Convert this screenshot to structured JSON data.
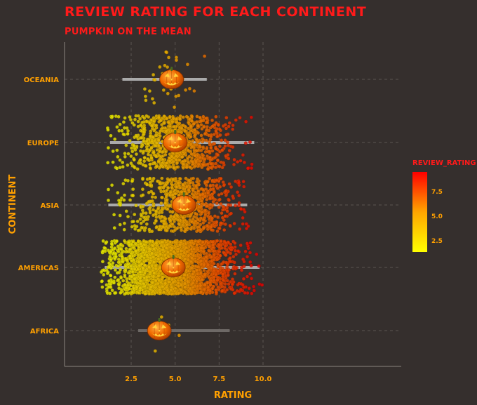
{
  "chart_data": {
    "type": "scatter",
    "title": "Review rating for each continent",
    "subtitle": "Pumpkin on the mean",
    "xlabel": "Rating",
    "ylabel": "Continent",
    "xlim": [
      0.5,
      10.2
    ],
    "x_ticks": [
      2.5,
      5.0,
      7.5,
      10.0
    ],
    "x_tick_labels": [
      "2.5",
      "5.0",
      "7.5",
      "10.0"
    ],
    "categories": [
      "Oceania",
      "Europe",
      "Asia",
      "Americas",
      "Africa"
    ],
    "grid": true,
    "series": [
      {
        "continent": "Oceania",
        "mean": 4.8,
        "min": 2.0,
        "max": 6.8,
        "n_points": 40
      },
      {
        "continent": "Europe",
        "mean": 5.0,
        "min": 1.3,
        "max": 9.5,
        "n_points": 900
      },
      {
        "continent": "Asia",
        "mean": 5.5,
        "min": 1.2,
        "max": 9.1,
        "n_points": 750
      },
      {
        "continent": "Americas",
        "mean": 4.9,
        "min": 1.0,
        "max": 9.8,
        "n_points": 2600
      },
      {
        "continent": "Africa",
        "mean": 4.1,
        "min": 2.9,
        "max": 8.1,
        "n_points": 6
      }
    ],
    "legend": {
      "title": "review_rating",
      "position": "right",
      "ticks": [
        2.5,
        5.0,
        7.5
      ],
      "tick_labels": [
        "2.5",
        "5.0",
        "7.5"
      ],
      "range": [
        1.5,
        9.6
      ],
      "colors": [
        "#ffff00",
        "#ffa500",
        "#ff0000"
      ]
    },
    "colors": {
      "background": "#352f2d",
      "title": "#ff1a1a",
      "axis_text": "#ffa000",
      "range_line": "#aaaaaa",
      "range_line_dim": "#6e6966"
    },
    "marker_icon": "jack-o-lantern-icon"
  }
}
